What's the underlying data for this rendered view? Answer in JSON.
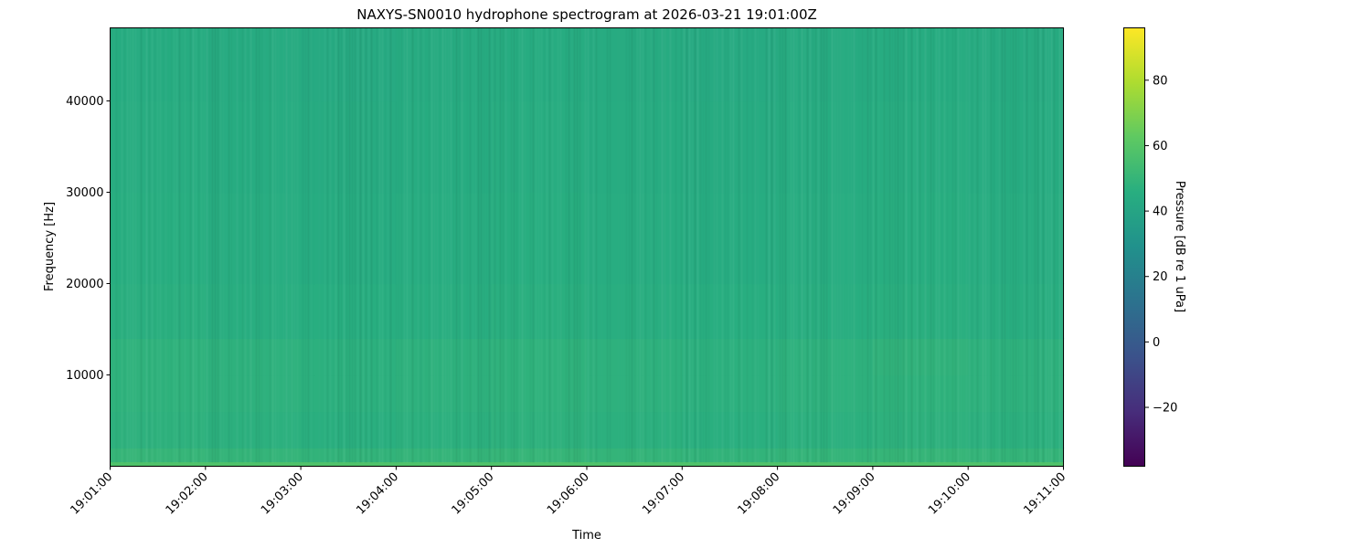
{
  "chart_data": {
    "type": "heatmap",
    "title": "NAXYS-SN0010 hydrophone spectrogram at 2026-03-21 19:01:00Z",
    "xlabel": "Time",
    "ylabel": "Frequency [Hz]",
    "x_tick_labels": [
      "19:01:00",
      "19:02:00",
      "19:03:00",
      "19:04:00",
      "19:05:00",
      "19:06:00",
      "19:07:00",
      "19:08:00",
      "19:09:00",
      "19:10:00",
      "19:11:00"
    ],
    "y_ticks": [
      10000,
      20000,
      30000,
      40000
    ],
    "y_tick_labels": [
      "10000",
      "20000",
      "30000",
      "40000"
    ],
    "ylim": [
      0,
      48000
    ],
    "time_bins": [
      "19:01",
      "19:02",
      "19:03",
      "19:04",
      "19:05",
      "19:06",
      "19:07",
      "19:08",
      "19:09",
      "19:10"
    ],
    "freq_band_edges_hz": [
      0,
      500,
      2000,
      6000,
      10000,
      14000,
      20000,
      30000,
      40000,
      48000
    ],
    "values_db": [
      [
        58,
        58,
        58,
        58,
        58,
        58,
        58,
        58,
        58,
        58
      ],
      [
        50,
        49.5,
        49,
        49.5,
        50,
        49.5,
        49,
        49.5,
        50,
        49.5
      ],
      [
        47.5,
        47,
        46.5,
        47,
        47.5,
        47,
        46.5,
        47,
        47.5,
        47
      ],
      [
        48,
        47.5,
        47,
        47.5,
        48,
        47.5,
        47,
        47.5,
        48,
        47.5
      ],
      [
        48,
        47.5,
        47,
        47.5,
        48,
        47.5,
        47,
        47.5,
        48.5,
        47.5
      ],
      [
        46.5,
        46,
        45.5,
        46,
        46.5,
        46,
        45.5,
        46,
        46.5,
        46
      ],
      [
        45.5,
        45,
        44.5,
        45,
        45.5,
        45,
        44.5,
        45,
        45.5,
        45
      ],
      [
        45,
        44.5,
        44,
        44.5,
        45,
        44.5,
        44,
        44.5,
        45,
        44.5
      ],
      [
        44.5,
        44,
        43.5,
        44,
        44.5,
        44,
        43.5,
        44,
        44.5,
        44
      ]
    ],
    "colorbar": {
      "label": "Pressure [dB re 1 uPa]",
      "colormap": "viridis",
      "range": [
        -38,
        96
      ],
      "ticks": [
        -20,
        0,
        20,
        40,
        60,
        80
      ],
      "tick_labels": [
        "−20",
        "0",
        "20",
        "40",
        "60",
        "80"
      ]
    },
    "grid": false
  }
}
